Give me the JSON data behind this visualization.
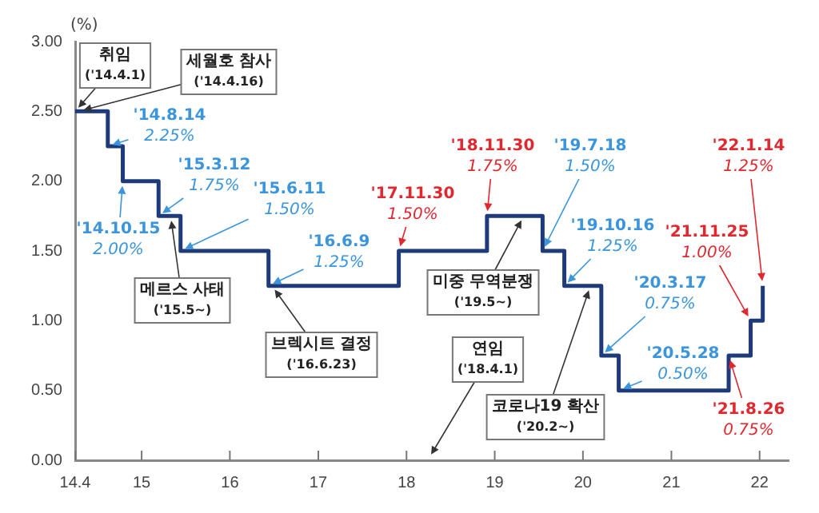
{
  "chart_data": {
    "type": "step",
    "ylabel": "(%)",
    "x": [
      "2014-04-01",
      "2014-08-14",
      "2014-10-15",
      "2015-03-12",
      "2015-06-11",
      "2016-06-09",
      "2017-11-30",
      "2018-11-30",
      "2019-07-18",
      "2019-10-16",
      "2020-03-17",
      "2020-05-28",
      "2021-08-26",
      "2021-11-25",
      "2022-01-14"
    ],
    "series": [
      {
        "color": "#1f3a7a",
        "values": [
          2.5,
          2.25,
          2.0,
          1.75,
          1.5,
          1.25,
          1.5,
          1.75,
          1.5,
          1.25,
          0.75,
          0.5,
          0.75,
          1.0,
          1.25
        ]
      }
    ],
    "xlim": [
      "2014-04-01",
      "2022-05-01"
    ],
    "xticks": [
      {
        "value": "2014-04-01",
        "label": "14.4"
      },
      {
        "value": "2015-01-01",
        "label": "15"
      },
      {
        "value": "2016-01-01",
        "label": "16"
      },
      {
        "value": "2017-01-01",
        "label": "17"
      },
      {
        "value": "2018-01-01",
        "label": "18"
      },
      {
        "value": "2019-01-01",
        "label": "19"
      },
      {
        "value": "2020-01-01",
        "label": "20"
      },
      {
        "value": "2021-01-01",
        "label": "21"
      },
      {
        "value": "2022-01-01",
        "label": "22"
      }
    ],
    "ylim": [
      0,
      3
    ],
    "yticks": [
      {
        "value": 0,
        "label": "0.00"
      },
      {
        "value": 0.5,
        "label": "0.50"
      },
      {
        "value": 1,
        "label": "1.00"
      },
      {
        "value": 1.5,
        "label": "1.50"
      },
      {
        "value": 2,
        "label": "2.00"
      },
      {
        "value": 2.5,
        "label": "2.50"
      },
      {
        "value": 3,
        "label": "3.00"
      }
    ],
    "grid": false,
    "legend": false,
    "marker": "none",
    "line_style": "solid",
    "annotations": [
      {
        "text": "취임\n('14.4.1)",
        "x": "2014-04-01",
        "y": 2.5
      },
      {
        "text": "세월호 참사\n('14.4.16)",
        "x": "2014-04-16",
        "y": 2.5
      },
      {
        "text": "'14.8.14\n2.25%",
        "x": "2014-08-14",
        "y": 2.25
      },
      {
        "text": "'14.10.15\n2.00%",
        "x": "2014-10-15",
        "y": 2.0
      },
      {
        "text": "'15.3.12\n1.75%",
        "x": "2015-03-12",
        "y": 1.75
      },
      {
        "text": "'15.6.11\n1.50%",
        "x": "2015-06-11",
        "y": 1.5
      },
      {
        "text": "'16.6.9\n1.25%",
        "x": "2016-06-09",
        "y": 1.25
      },
      {
        "text": "'17.11.30\n1.50%",
        "x": "2017-11-30",
        "y": 1.5
      },
      {
        "text": "'18.11.30\n1.75%",
        "x": "2018-11-30",
        "y": 1.75
      },
      {
        "text": "'19.7.18\n1.50%",
        "x": "2019-07-18",
        "y": 1.5
      },
      {
        "text": "'19.10.16\n1.25%",
        "x": "2019-10-16",
        "y": 1.25
      },
      {
        "text": "'20.3.17\n0.75%",
        "x": "2020-03-17",
        "y": 0.75
      },
      {
        "text": "'20.5.28\n0.50%",
        "x": "2020-05-28",
        "y": 0.5
      },
      {
        "text": "'21.8.26\n0.75%",
        "x": "2021-08-26",
        "y": 0.75
      },
      {
        "text": "'21.11.25\n1.00%",
        "x": "2021-11-25",
        "y": 1.0
      },
      {
        "text": "'22.1.14\n1.25%",
        "x": "2022-01-14",
        "y": 1.25
      },
      {
        "text": "메르스 사태\n('15.5~)",
        "x": "2015-05-01",
        "y": 1.75
      },
      {
        "text": "브렉시트 결정\n('16.6.23)",
        "x": "2016-06-23",
        "y": 1.25
      },
      "연임\n('18.4.1)",
      {
        "text": "미중 무역분쟁\n('19.5~)",
        "x": "2019-05-01",
        "y": 1.75
      },
      {
        "text": "코로나19 확산\n('20.2~)",
        "x": "2020-02-01",
        "y": 1.25
      }
    ]
  }
}
